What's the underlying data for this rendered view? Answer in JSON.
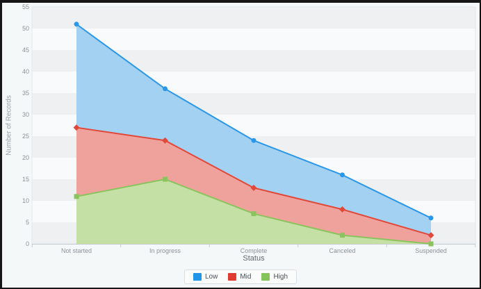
{
  "page": {
    "background_color": "#f5f8f8",
    "frame_color": "#161616"
  },
  "chart_data": {
    "type": "area",
    "title": "",
    "xlabel": "Status",
    "ylabel": "Number of Records",
    "categories": [
      "Not started",
      "In progress",
      "Complete",
      "Canceled",
      "Suspended"
    ],
    "series": [
      {
        "name": "Low",
        "marker": "circle",
        "values": [
          51,
          36,
          24,
          16,
          6
        ],
        "line_color": "#2b97e8",
        "fill_color": "#a3d1f2",
        "legend_color": "#2196e8"
      },
      {
        "name": "Mid",
        "marker": "diamond",
        "values": [
          27,
          24,
          13,
          8,
          2
        ],
        "line_color": "#e0483a",
        "fill_color": "#efa29c",
        "legend_color": "#e03b30"
      },
      {
        "name": "High",
        "marker": "square",
        "values": [
          11,
          15,
          7,
          2,
          0
        ],
        "line_color": "#8bc35e",
        "fill_color": "#c5e0a5",
        "legend_color": "#84c45a"
      }
    ],
    "ylim": [
      0,
      55
    ],
    "ytick_step": 5,
    "yticks": [
      0,
      5,
      10,
      15,
      20,
      25,
      30,
      35,
      40,
      45,
      50,
      55
    ],
    "grid": "horizontal-bands",
    "band_colors": {
      "even": "#eef0f2",
      "odd": "#f8fafb"
    },
    "axis_line_color": "#c6cbcf",
    "plot_border_color": "#e4e7ea",
    "tick_label_color": "#8b9298",
    "legend_position": "bottom"
  }
}
